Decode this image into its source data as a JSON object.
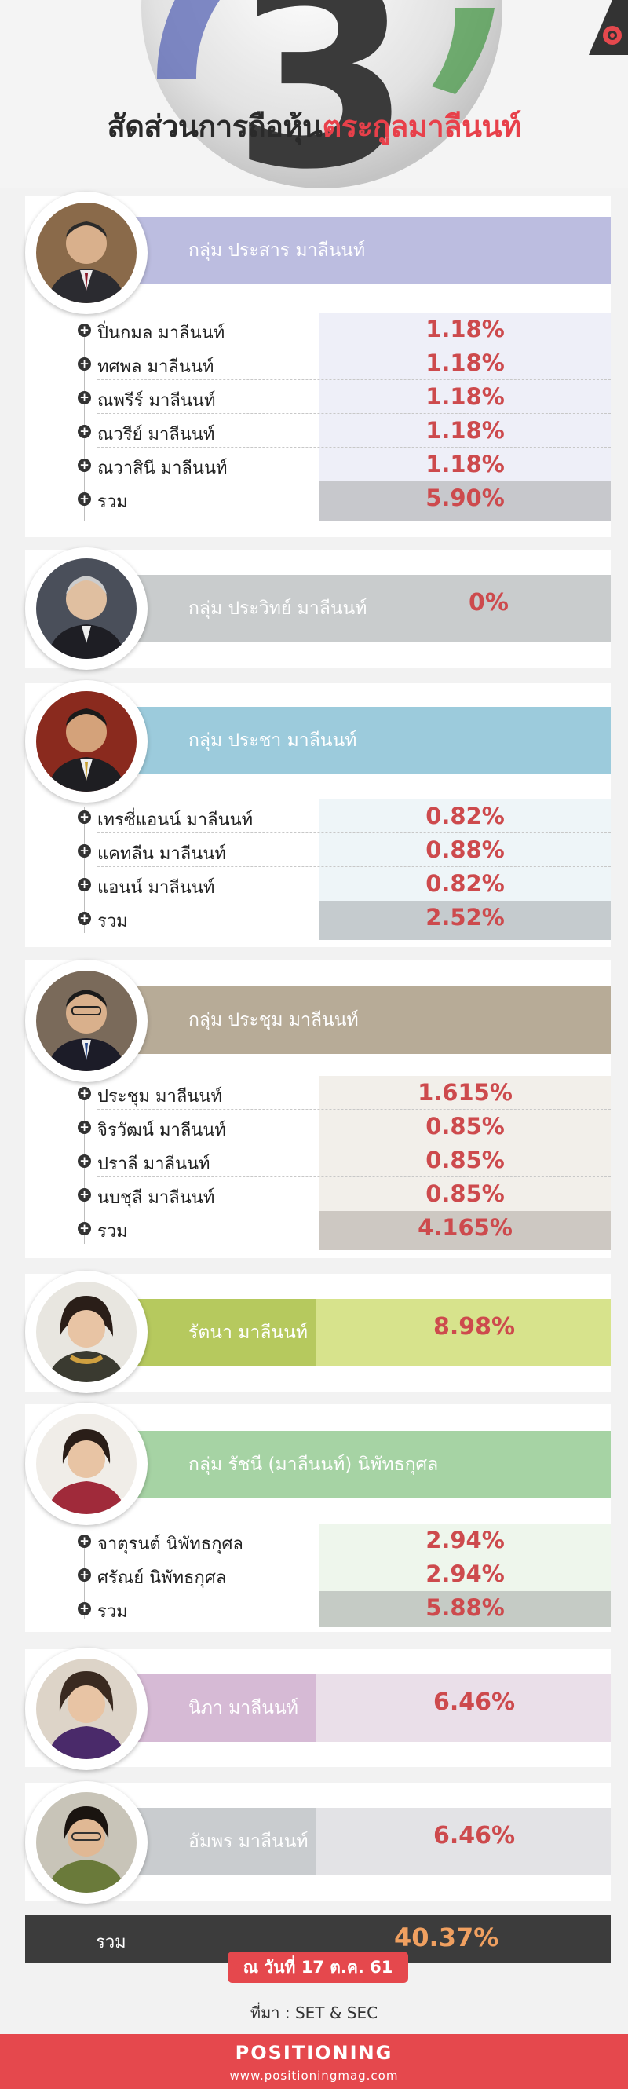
{
  "title": {
    "prefix": "สัดส่วนการถือหุ้น",
    "highlight": "ตระกูลมาลีนนท์"
  },
  "groups": [
    {
      "name": "กลุ่ม ประสาร มาลีนนท์",
      "color": "#bcbde0",
      "cell": "#eeeff8",
      "total_cell": "#c7c8cc",
      "members": [
        {
          "name": "ปิ่นกมล มาลีนนท์",
          "pct": "1.18%"
        },
        {
          "name": "ทศพล มาลีนนท์",
          "pct": "1.18%"
        },
        {
          "name": "ณพรีร์ มาลีนนท์",
          "pct": "1.18%"
        },
        {
          "name": "ณวรีย์ มาลีนนท์",
          "pct": "1.18%"
        },
        {
          "name": "ณวาสินี มาลีนนท์",
          "pct": "1.18%"
        }
      ],
      "total_label": "รวม",
      "total": "5.90%"
    },
    {
      "name": "กลุ่ม ประวิทย์  มาลีนนท์",
      "color": "#c9cccd",
      "single": "0%"
    },
    {
      "name": "กลุ่ม ประชา มาลีนนท์",
      "color": "#9ccbdc",
      "cell": "#eef5f8",
      "total_cell": "#c5cbce",
      "members": [
        {
          "name": "เทรซี่แอนน์ มาลีนนท์",
          "pct": "0.82%"
        },
        {
          "name": "แคทลีน มาลีนนท์",
          "pct": "0.88%"
        },
        {
          "name": "แอนน์ มาลีนนท์",
          "pct": "0.82%"
        }
      ],
      "total_label": "รวม",
      "total": "2.52%"
    },
    {
      "name": "กลุ่ม ประชุม มาลีนนท์",
      "color": "#b7ab97",
      "cell": "#f2efea",
      "total_cell": "#cdc8c2",
      "members": [
        {
          "name": "ประชุม มาลีนนท์",
          "pct": "1.615%"
        },
        {
          "name": "จิรวัฒน์ มาลีนนท์",
          "pct": "0.85%"
        },
        {
          "name": "ปราลี มาลีนนท์",
          "pct": "0.85%"
        },
        {
          "name": "นบชุลี มาลีนนท์",
          "pct": "0.85%"
        }
      ],
      "total_label": "รวม",
      "total": "4.165%"
    },
    {
      "name": "รัตนา มาลีนนท์",
      "color": "#b6c95e",
      "cellcolor": "#d7e38c",
      "single": "8.98%"
    },
    {
      "name": "กลุ่ม รัชนี (มาลีนนท์) นิพัทธกุศล",
      "color": "#a6d3a4",
      "cell": "#eef6ec",
      "total_cell": "#c5cbc5",
      "members": [
        {
          "name": "จาตุรนต์ นิพัทธกุศล",
          "pct": "2.94%"
        },
        {
          "name": "ศรัณย์ นิพัทธกุศล",
          "pct": "2.94%"
        }
      ],
      "total_label": "รวม",
      "total": "5.88%"
    },
    {
      "name": "นิภา มาลีนนท์",
      "color": "#d6bad5",
      "cellcolor": "#eadfe9",
      "single": "6.46%"
    },
    {
      "name": "อัมพร มาลีนนท์",
      "color": "#c9cccf",
      "cellcolor": "#e3e3e6",
      "single": "6.46%"
    }
  ],
  "grand_total": {
    "label": "รวม",
    "value": "40.37%"
  },
  "date": "ณ วันที่ 17 ต.ค. 61",
  "source": "ที่มา : SET & SEC",
  "footer": {
    "brand": "POSITIONING",
    "url": "www.positioningmag.com"
  },
  "colors": {
    "accent": "#e5484d",
    "value_red": "#cd4a4d",
    "total_bg": "#3c3c3c"
  }
}
